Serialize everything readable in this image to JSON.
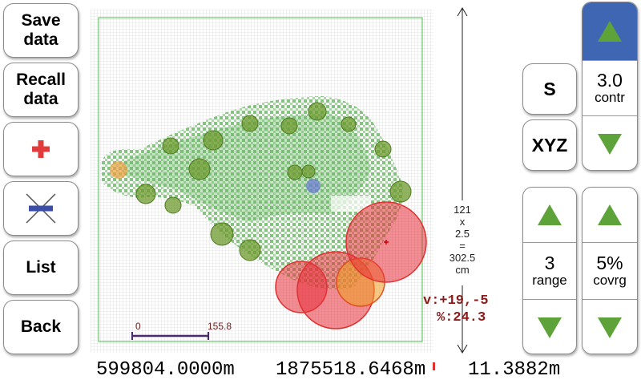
{
  "left_buttons": {
    "save_label": "Save\ndata",
    "recall_label": "Recall\ndata",
    "list_label": "List",
    "back_label": "Back"
  },
  "map": {
    "scale_start": "0",
    "scale_end": "155.8"
  },
  "dimension": {
    "line1": "121",
    "line2": "x",
    "line3": "2.5",
    "line4": "=",
    "line5": "302.5",
    "line6": "cm"
  },
  "values": {
    "v_text": "v:+19,-5",
    "percent_text": "%:24.3"
  },
  "readouts": {
    "easting": "599804.0000m",
    "northing": "1875518.6468m",
    "elevation": "11.3882m"
  },
  "right_controls": {
    "s_label": "S",
    "xyz_label": "XYZ",
    "contr_value": "3.0",
    "contr_label": "contr",
    "range_value": "3",
    "range_label": "range",
    "covrg_value": "5%",
    "covrg_label": "covrg"
  },
  "colors": {
    "arrow_green": "#5da33a",
    "active_blue": "#3f66b3",
    "add_red": "#e23b3b",
    "delete_blue": "#3a4ea8",
    "grid_line": "#cfcfcf",
    "boundary_green": "#66cc66",
    "point_green": "#5fb35a",
    "marker_olive": "#6c9a2e",
    "hotspot_red": "#e8303a",
    "value_red": "#8b1a1a"
  },
  "icons": {
    "add": "plus-icon",
    "delete": "x-delete-icon",
    "up": "triangle-up-icon",
    "down": "triangle-down-icon"
  }
}
